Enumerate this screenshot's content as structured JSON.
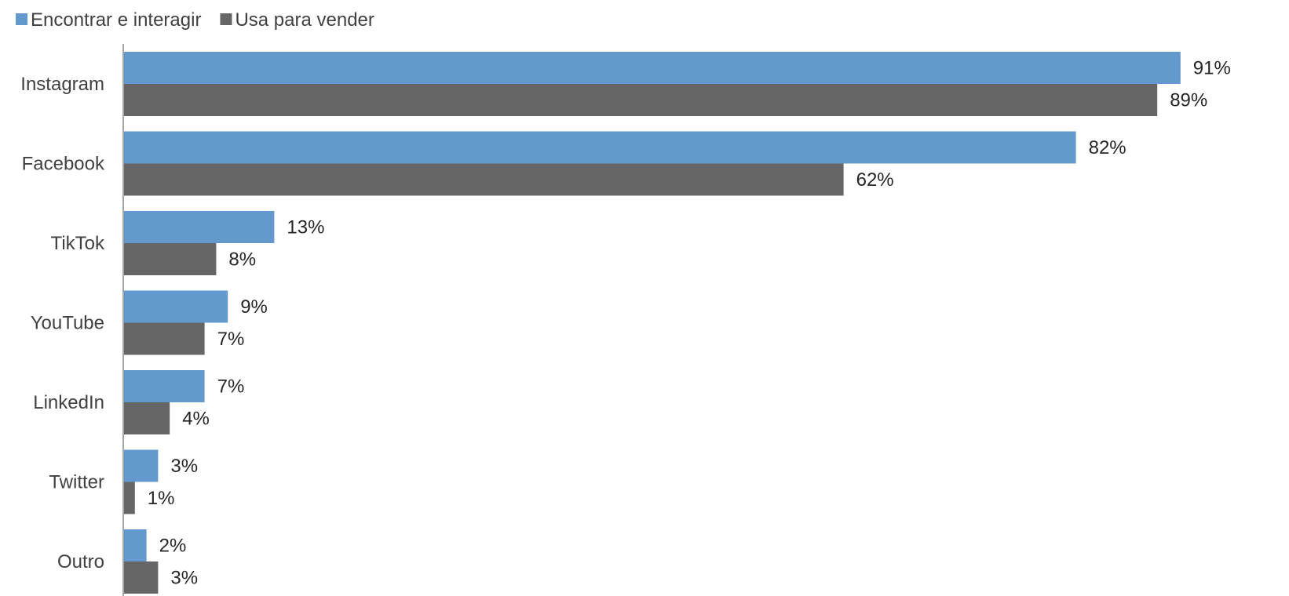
{
  "chart_data": {
    "type": "bar",
    "orientation": "horizontal",
    "categories": [
      "Instagram",
      "Facebook",
      "TikTok",
      "YouTube",
      "LinkedIn",
      "Twitter",
      "Outro"
    ],
    "series": [
      {
        "name": "Encontrar e interagir",
        "color": "#6399cd",
        "values": [
          91,
          82,
          13,
          9,
          7,
          3,
          2
        ],
        "labels": [
          "91%",
          "82%",
          "13%",
          "9%",
          "7%",
          "3%",
          "2%"
        ]
      },
      {
        "name": "Usa para vender",
        "color": "#666666",
        "values": [
          89,
          62,
          8,
          7,
          4,
          1,
          3
        ],
        "labels": [
          "89%",
          "62%",
          "8%",
          "7%",
          "4%",
          "1%",
          "3%"
        ]
      }
    ],
    "xlim": [
      0,
      100
    ],
    "grid": false,
    "legend": "top-left"
  }
}
